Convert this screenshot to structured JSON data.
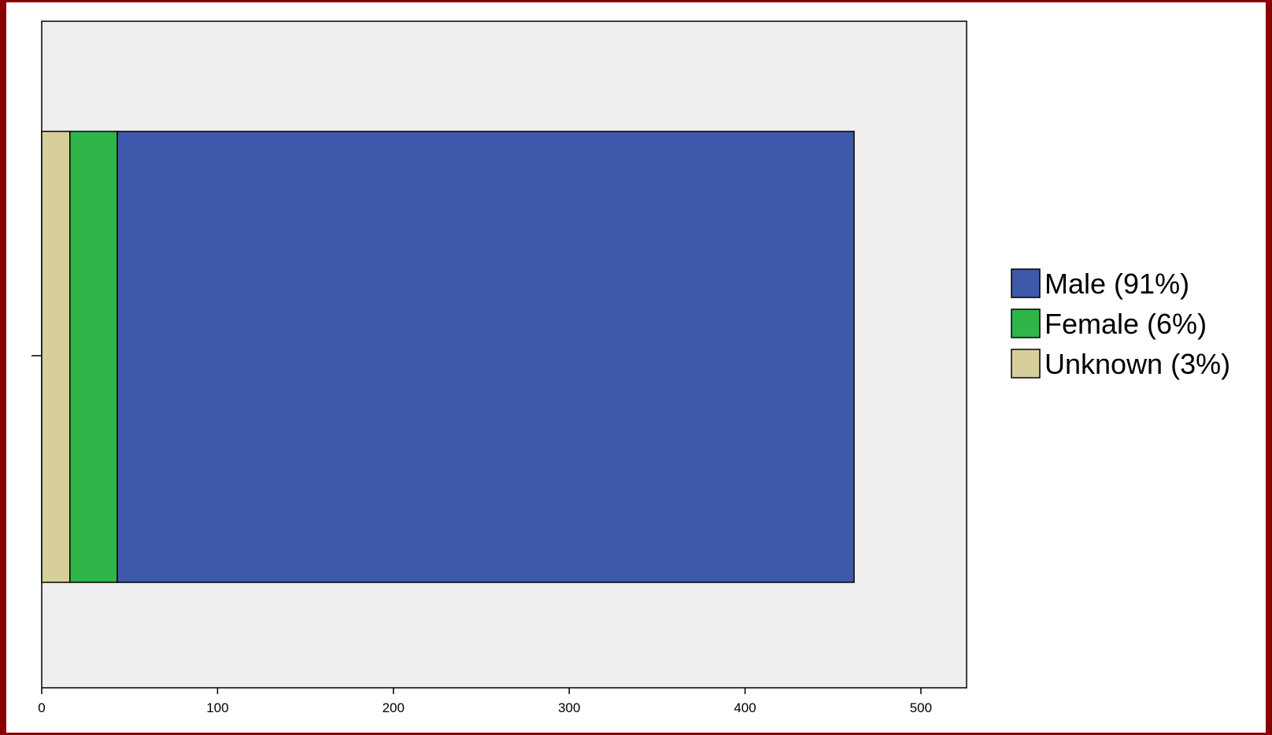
{
  "chart_data": {
    "type": "bar",
    "orientation": "horizontal",
    "stacked": true,
    "categories": [
      ""
    ],
    "series": [
      {
        "name": "Unknown (3%)",
        "values": [
          16
        ],
        "color": "#d6cf9c"
      },
      {
        "name": "Female (6%)",
        "values": [
          27
        ],
        "color": "#2fb548"
      },
      {
        "name": "Male (91%)",
        "values": [
          419
        ],
        "color": "#3e58ab"
      }
    ],
    "legend_order": [
      2,
      1,
      0
    ],
    "xlim": [
      0,
      526
    ],
    "xticks": [
      0,
      100,
      200,
      300,
      400,
      500
    ],
    "xtick_labels": [
      "0",
      "100",
      "200",
      "300",
      "400",
      "500"
    ],
    "plot_background": "#efefef",
    "frame_color": "#8b0000",
    "grid": false,
    "legend_position": "right"
  }
}
